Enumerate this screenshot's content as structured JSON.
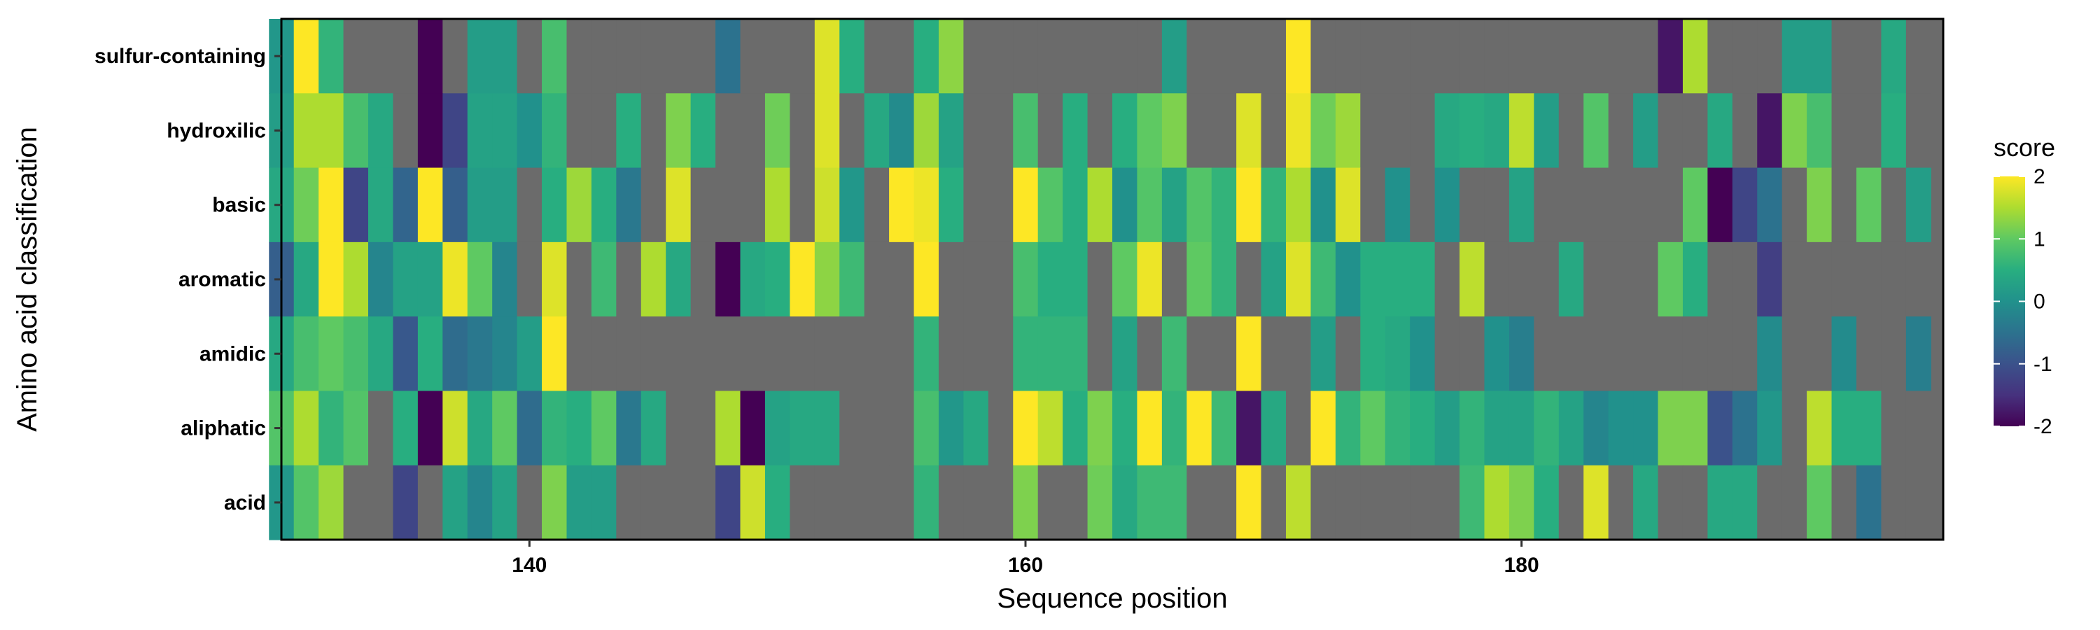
{
  "chart_data": {
    "type": "heatmap",
    "title": "",
    "xlabel": "Sequence position",
    "ylabel": "Amino acid classification",
    "x_ticks": [
      140,
      160,
      180
    ],
    "x_tick_labels": [
      "140",
      "160",
      "180"
    ],
    "xlim": [
      130,
      197
    ],
    "categories": [
      "sulfur-containing",
      "hydroxilic",
      "basic",
      "aromatic",
      "amidic",
      "aliphatic",
      "acid"
    ],
    "legend": {
      "title": "score",
      "ticks": [
        2,
        1,
        0,
        -1,
        -2
      ],
      "tick_labels": [
        "2",
        "1",
        "0",
        "-1",
        "-2"
      ],
      "range": [
        -2,
        2
      ],
      "palette": "viridis",
      "placement": "right"
    },
    "missing_color": "#6b6b6b",
    "positions": [
      130,
      131,
      132,
      133,
      134,
      135,
      136,
      137,
      138,
      139,
      140,
      141,
      142,
      143,
      144,
      145,
      146,
      147,
      148,
      149,
      150,
      151,
      152,
      153,
      154,
      155,
      156,
      157,
      158,
      159,
      160,
      161,
      162,
      163,
      164,
      165,
      166,
      167,
      168,
      169,
      170,
      171,
      172,
      173,
      174,
      175,
      176,
      177,
      178,
      179,
      180,
      181,
      182,
      183,
      184,
      185,
      186,
      187,
      188,
      189,
      190,
      191,
      192,
      193,
      194,
      195,
      196
    ],
    "values": {
      "sulfur-containing": [
        0.1,
        2.0,
        0.6,
        null,
        null,
        null,
        -2.0,
        null,
        0.2,
        0.2,
        null,
        0.8,
        null,
        null,
        null,
        null,
        null,
        null,
        -0.5,
        null,
        null,
        null,
        1.8,
        0.5,
        null,
        null,
        0.5,
        1.3,
        null,
        null,
        null,
        null,
        null,
        null,
        null,
        null,
        0.2,
        null,
        null,
        null,
        null,
        2.0,
        null,
        null,
        null,
        null,
        null,
        null,
        null,
        null,
        null,
        null,
        null,
        null,
        null,
        null,
        -1.8,
        1.5,
        null,
        null,
        null,
        0.2,
        0.2,
        null,
        null,
        0.4,
        null
      ],
      "hydroxilic": [
        0.2,
        1.5,
        1.5,
        0.8,
        0.4,
        null,
        -2.0,
        -1.2,
        0.3,
        0.3,
        0.0,
        0.6,
        null,
        null,
        0.5,
        null,
        1.2,
        0.5,
        null,
        null,
        1.1,
        null,
        1.8,
        null,
        0.4,
        -0.1,
        1.4,
        0.3,
        null,
        null,
        0.8,
        null,
        0.5,
        null,
        0.5,
        1.0,
        1.2,
        null,
        null,
        1.8,
        null,
        1.9,
        1.1,
        1.4,
        null,
        null,
        null,
        0.4,
        0.5,
        0.4,
        1.6,
        0.2,
        null,
        0.9,
        null,
        0.2,
        null,
        null,
        0.4,
        null,
        -1.8,
        1.2,
        0.8,
        null,
        null,
        0.5,
        null
      ],
      "basic": [
        0.4,
        1.1,
        2.0,
        -1.2,
        0.4,
        -0.7,
        2.0,
        -0.8,
        0.2,
        0.2,
        null,
        0.5,
        1.4,
        0.5,
        -0.4,
        null,
        1.8,
        null,
        null,
        null,
        1.5,
        null,
        1.7,
        0.1,
        null,
        2.0,
        1.9,
        0.5,
        null,
        null,
        2.0,
        0.9,
        0.5,
        1.5,
        0.0,
        0.9,
        0.3,
        0.9,
        0.6,
        2.0,
        0.6,
        1.5,
        0.0,
        1.8,
        null,
        0.0,
        null,
        0.0,
        null,
        null,
        0.3,
        null,
        null,
        null,
        null,
        null,
        null,
        1.0,
        -2.0,
        -1.2,
        -0.5,
        null,
        1.2,
        null,
        1.0,
        null,
        0.2
      ],
      "aromatic": [
        -0.8,
        0.4,
        2.0,
        1.5,
        -0.2,
        0.3,
        0.3,
        1.9,
        1.0,
        -0.2,
        null,
        1.8,
        null,
        0.7,
        null,
        1.5,
        0.4,
        null,
        -2.0,
        0.4,
        0.5,
        2.0,
        1.3,
        0.7,
        null,
        null,
        2.0,
        null,
        null,
        null,
        0.8,
        0.5,
        0.5,
        null,
        1.0,
        1.9,
        null,
        1.0,
        0.6,
        null,
        0.3,
        1.8,
        0.7,
        0.0,
        0.5,
        0.5,
        0.5,
        null,
        1.6,
        null,
        null,
        null,
        0.4,
        null,
        null,
        null,
        1.0,
        0.5,
        null,
        null,
        -1.3,
        null,
        null,
        null,
        null,
        null,
        null
      ],
      "amidic": [
        0.4,
        0.8,
        1.0,
        0.8,
        0.4,
        -0.9,
        0.5,
        -0.6,
        -0.4,
        -0.2,
        0.2,
        2.0,
        null,
        null,
        null,
        null,
        null,
        null,
        null,
        null,
        null,
        null,
        null,
        null,
        null,
        null,
        0.6,
        null,
        null,
        null,
        0.6,
        0.6,
        0.6,
        null,
        0.3,
        null,
        0.7,
        null,
        null,
        2.0,
        null,
        null,
        0.2,
        null,
        0.5,
        0.4,
        0.0,
        null,
        null,
        0.0,
        -0.3,
        null,
        null,
        null,
        null,
        null,
        null,
        null,
        null,
        null,
        -0.1,
        null,
        null,
        -0.1,
        null,
        null,
        -0.3
      ],
      "aliphatic": [
        0.9,
        1.5,
        0.6,
        0.9,
        null,
        0.5,
        -2.0,
        1.7,
        0.4,
        1.0,
        -0.6,
        0.6,
        0.5,
        1.0,
        -0.4,
        0.4,
        null,
        null,
        1.5,
        -2.0,
        0.3,
        0.4,
        0.4,
        null,
        null,
        null,
        0.8,
        0.1,
        0.4,
        null,
        2.0,
        1.6,
        0.5,
        1.2,
        0.5,
        2.0,
        0.6,
        2.0,
        0.7,
        -1.8,
        0.4,
        null,
        2.0,
        0.6,
        1.0,
        0.6,
        0.5,
        0.2,
        0.6,
        0.3,
        0.3,
        0.6,
        0.3,
        -0.2,
        0.0,
        0.0,
        1.2,
        1.2,
        -1.0,
        -0.5,
        0.1,
        null,
        1.6,
        0.5,
        0.5,
        null,
        null
      ],
      "acid": [
        0.1,
        0.9,
        1.4,
        null,
        null,
        -1.2,
        null,
        0.3,
        -0.2,
        0.3,
        null,
        1.2,
        0.2,
        0.2,
        null,
        null,
        null,
        null,
        -1.2,
        1.7,
        0.5,
        null,
        null,
        null,
        null,
        null,
        0.6,
        null,
        null,
        null,
        1.2,
        null,
        null,
        1.1,
        0.4,
        0.7,
        0.7,
        null,
        null,
        2.0,
        null,
        1.6,
        null,
        null,
        null,
        null,
        null,
        null,
        0.7,
        1.5,
        1.2,
        0.5,
        null,
        1.8,
        null,
        0.4,
        null,
        null,
        0.4,
        0.4,
        null,
        null,
        1.0,
        null,
        -0.5,
        null,
        null
      ]
    }
  }
}
